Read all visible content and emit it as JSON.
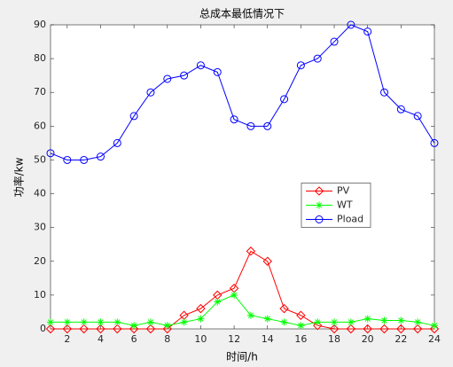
{
  "chart_data": {
    "type": "line",
    "title": "总成本最低情况下",
    "xlabel": "时间/h",
    "ylabel": "功率/kw",
    "x": [
      1,
      2,
      3,
      4,
      5,
      6,
      7,
      8,
      9,
      10,
      11,
      12,
      13,
      14,
      15,
      16,
      17,
      18,
      19,
      20,
      21,
      22,
      23,
      24
    ],
    "series": [
      {
        "name": "PV",
        "color": "#ff0000",
        "marker": "diamond",
        "values": [
          0,
          0,
          0,
          0,
          0,
          0,
          0,
          0,
          4,
          6,
          10,
          12,
          23,
          20,
          6,
          4,
          1,
          0,
          0,
          0,
          0,
          0,
          0,
          0
        ]
      },
      {
        "name": "WT",
        "color": "#00ff00",
        "marker": "asterisk",
        "values": [
          2,
          2,
          2,
          2,
          2,
          1,
          2,
          1,
          2,
          3,
          8,
          10,
          4,
          3,
          2,
          1,
          2,
          2,
          2,
          3,
          2.5,
          2.5,
          2,
          1
        ]
      },
      {
        "name": "Pload",
        "color": "#0000ff",
        "marker": "circle",
        "values": [
          52,
          50,
          50,
          51,
          55,
          63,
          70,
          74,
          75,
          78,
          76,
          62,
          60,
          60,
          68,
          78,
          80,
          85,
          90,
          88,
          70,
          65,
          63,
          55
        ]
      }
    ],
    "xlim": [
      1,
      24
    ],
    "xticks": [
      2,
      4,
      6,
      8,
      10,
      12,
      14,
      16,
      18,
      20,
      22,
      24
    ],
    "ylim": [
      0,
      90
    ],
    "yticks": [
      0,
      10,
      20,
      30,
      40,
      50,
      60,
      70,
      80,
      90
    ],
    "grid": false,
    "legend": "east"
  }
}
